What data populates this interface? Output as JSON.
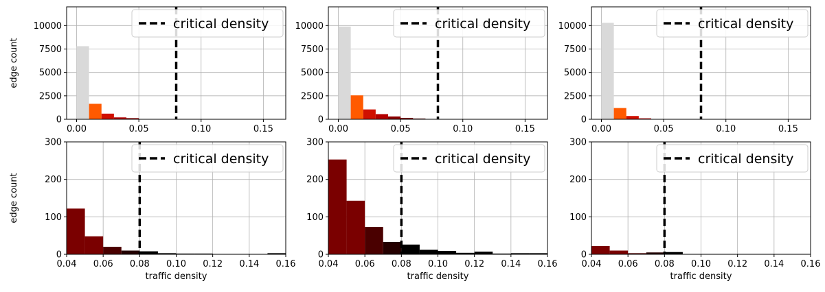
{
  "legend_label": "critical density",
  "critical_density": 0.08,
  "chart_data": [
    {
      "type": "bar",
      "row": 0,
      "col": 0,
      "xlim": [
        -0.008,
        0.168
      ],
      "ylim": [
        0,
        12000
      ],
      "xticks": [
        0.0,
        0.05,
        0.1,
        0.15
      ],
      "xtick_labels": [
        "0.00",
        "0.05",
        "0.10",
        "0.15"
      ],
      "yticks": [
        0,
        2500,
        5000,
        7500,
        10000
      ],
      "ytick_labels": [
        "0",
        "2500",
        "5000",
        "7500",
        "10000"
      ],
      "ylabel": "edge count",
      "xlabel": "",
      "grid": true,
      "legend_position": "top-right",
      "bin_width": 0.01,
      "bins": [
        {
          "x": 0.0,
          "value": 7800,
          "color": "#d9d9d9"
        },
        {
          "x": 0.01,
          "value": 1650,
          "color": "#ff5a00"
        },
        {
          "x": 0.02,
          "value": 600,
          "color": "#d01000"
        },
        {
          "x": 0.03,
          "value": 200,
          "color": "#b40000"
        },
        {
          "x": 0.04,
          "value": 120,
          "color": "#8b0000"
        },
        {
          "x": 0.05,
          "value": 30,
          "color": "#7a0000"
        }
      ]
    },
    {
      "type": "bar",
      "row": 0,
      "col": 1,
      "xlim": [
        -0.008,
        0.168
      ],
      "ylim": [
        0,
        12000
      ],
      "xticks": [
        0.0,
        0.05,
        0.1,
        0.15
      ],
      "xtick_labels": [
        "0.00",
        "0.05",
        "0.10",
        "0.15"
      ],
      "yticks": [
        0,
        2500,
        5000,
        7500,
        10000
      ],
      "ytick_labels": [
        "0",
        "2500",
        "5000",
        "7500",
        "10000"
      ],
      "ylabel": "",
      "xlabel": "",
      "grid": true,
      "legend_position": "top-right",
      "bin_width": 0.01,
      "bins": [
        {
          "x": 0.0,
          "value": 9900,
          "color": "#d9d9d9"
        },
        {
          "x": 0.01,
          "value": 2550,
          "color": "#ff5a00"
        },
        {
          "x": 0.02,
          "value": 1050,
          "color": "#d01000"
        },
        {
          "x": 0.03,
          "value": 550,
          "color": "#b40000"
        },
        {
          "x": 0.04,
          "value": 300,
          "color": "#8b0000"
        },
        {
          "x": 0.05,
          "value": 150,
          "color": "#7a0000"
        },
        {
          "x": 0.06,
          "value": 80,
          "color": "#4a0000"
        },
        {
          "x": 0.07,
          "value": 40,
          "color": "#250000"
        },
        {
          "x": 0.08,
          "value": 20,
          "color": "#000000"
        }
      ]
    },
    {
      "type": "bar",
      "row": 0,
      "col": 2,
      "xlim": [
        -0.008,
        0.168
      ],
      "ylim": [
        0,
        12000
      ],
      "xticks": [
        0.0,
        0.05,
        0.1,
        0.15
      ],
      "xtick_labels": [
        "0.00",
        "0.05",
        "0.10",
        "0.15"
      ],
      "yticks": [
        0,
        2500,
        5000,
        7500,
        10000
      ],
      "ytick_labels": [
        "0",
        "2500",
        "5000",
        "7500",
        "10000"
      ],
      "ylabel": "",
      "xlabel": "",
      "grid": true,
      "legend_position": "top-right",
      "bin_width": 0.01,
      "bins": [
        {
          "x": 0.0,
          "value": 10300,
          "color": "#d9d9d9"
        },
        {
          "x": 0.01,
          "value": 1200,
          "color": "#ff5a00"
        },
        {
          "x": 0.02,
          "value": 350,
          "color": "#d01000"
        },
        {
          "x": 0.03,
          "value": 100,
          "color": "#b40000"
        },
        {
          "x": 0.04,
          "value": 30,
          "color": "#8b0000"
        }
      ]
    },
    {
      "type": "bar",
      "row": 1,
      "col": 0,
      "xlim": [
        0.04,
        0.16
      ],
      "ylim": [
        0,
        300
      ],
      "xticks": [
        0.04,
        0.06,
        0.08,
        0.1,
        0.12,
        0.14,
        0.16
      ],
      "xtick_labels": [
        "0.04",
        "0.06",
        "0.08",
        "0.10",
        "0.12",
        "0.14",
        "0.16"
      ],
      "yticks": [
        0,
        100,
        200,
        300
      ],
      "ytick_labels": [
        "0",
        "100",
        "200",
        "300"
      ],
      "ylabel": "edge count",
      "xlabel": "traffic density",
      "grid": true,
      "legend_position": "top-right",
      "bin_width": 0.01,
      "bins": [
        {
          "x": 0.04,
          "value": 122,
          "color": "#7a0000"
        },
        {
          "x": 0.05,
          "value": 48,
          "color": "#7a0000"
        },
        {
          "x": 0.06,
          "value": 20,
          "color": "#4a0000"
        },
        {
          "x": 0.07,
          "value": 10,
          "color": "#250000"
        },
        {
          "x": 0.08,
          "value": 8,
          "color": "#000000"
        },
        {
          "x": 0.09,
          "value": 3,
          "color": "#000000"
        },
        {
          "x": 0.1,
          "value": 2,
          "color": "#000000"
        },
        {
          "x": 0.11,
          "value": 2,
          "color": "#000000"
        },
        {
          "x": 0.12,
          "value": 1,
          "color": "#000000"
        },
        {
          "x": 0.13,
          "value": 1,
          "color": "#000000"
        },
        {
          "x": 0.14,
          "value": 1,
          "color": "#000000"
        },
        {
          "x": 0.15,
          "value": 3,
          "color": "#000000"
        }
      ]
    },
    {
      "type": "bar",
      "row": 1,
      "col": 1,
      "xlim": [
        0.04,
        0.16
      ],
      "ylim": [
        0,
        300
      ],
      "xticks": [
        0.04,
        0.06,
        0.08,
        0.1,
        0.12,
        0.14,
        0.16
      ],
      "xtick_labels": [
        "0.04",
        "0.06",
        "0.08",
        "0.10",
        "0.12",
        "0.14",
        "0.16"
      ],
      "yticks": [
        0,
        100,
        200,
        300
      ],
      "ytick_labels": [
        "0",
        "100",
        "200",
        "300"
      ],
      "ylabel": "",
      "xlabel": "traffic density",
      "grid": true,
      "legend_position": "top-right",
      "bin_width": 0.01,
      "bins": [
        {
          "x": 0.04,
          "value": 253,
          "color": "#7a0000"
        },
        {
          "x": 0.05,
          "value": 143,
          "color": "#7a0000"
        },
        {
          "x": 0.06,
          "value": 73,
          "color": "#4a0000"
        },
        {
          "x": 0.07,
          "value": 33,
          "color": "#250000"
        },
        {
          "x": 0.08,
          "value": 26,
          "color": "#000000"
        },
        {
          "x": 0.09,
          "value": 12,
          "color": "#000000"
        },
        {
          "x": 0.1,
          "value": 9,
          "color": "#000000"
        },
        {
          "x": 0.11,
          "value": 4,
          "color": "#000000"
        },
        {
          "x": 0.12,
          "value": 7,
          "color": "#000000"
        },
        {
          "x": 0.13,
          "value": 2,
          "color": "#000000"
        },
        {
          "x": 0.14,
          "value": 3,
          "color": "#000000"
        },
        {
          "x": 0.15,
          "value": 3,
          "color": "#000000"
        }
      ]
    },
    {
      "type": "bar",
      "row": 1,
      "col": 2,
      "xlim": [
        0.04,
        0.16
      ],
      "ylim": [
        0,
        300
      ],
      "xticks": [
        0.04,
        0.06,
        0.08,
        0.1,
        0.12,
        0.14,
        0.16
      ],
      "xtick_labels": [
        "0.04",
        "0.06",
        "0.08",
        "0.10",
        "0.12",
        "0.14",
        "0.16"
      ],
      "yticks": [
        0,
        100,
        200,
        300
      ],
      "ytick_labels": [
        "0",
        "100",
        "200",
        "300"
      ],
      "ylabel": "",
      "xlabel": "traffic density",
      "grid": true,
      "legend_position": "top-right",
      "bin_width": 0.01,
      "bins": [
        {
          "x": 0.04,
          "value": 22,
          "color": "#7a0000"
        },
        {
          "x": 0.05,
          "value": 10,
          "color": "#7a0000"
        },
        {
          "x": 0.06,
          "value": 3,
          "color": "#4a0000"
        },
        {
          "x": 0.07,
          "value": 5,
          "color": "#250000"
        },
        {
          "x": 0.08,
          "value": 6,
          "color": "#000000"
        },
        {
          "x": 0.09,
          "value": 1,
          "color": "#000000"
        },
        {
          "x": 0.1,
          "value": 1,
          "color": "#000000"
        },
        {
          "x": 0.11,
          "value": 1,
          "color": "#000000"
        },
        {
          "x": 0.12,
          "value": 1,
          "color": "#000000"
        },
        {
          "x": 0.13,
          "value": 1,
          "color": "#000000"
        },
        {
          "x": 0.14,
          "value": 1,
          "color": "#000000"
        },
        {
          "x": 0.15,
          "value": 1,
          "color": "#000000"
        }
      ]
    }
  ]
}
